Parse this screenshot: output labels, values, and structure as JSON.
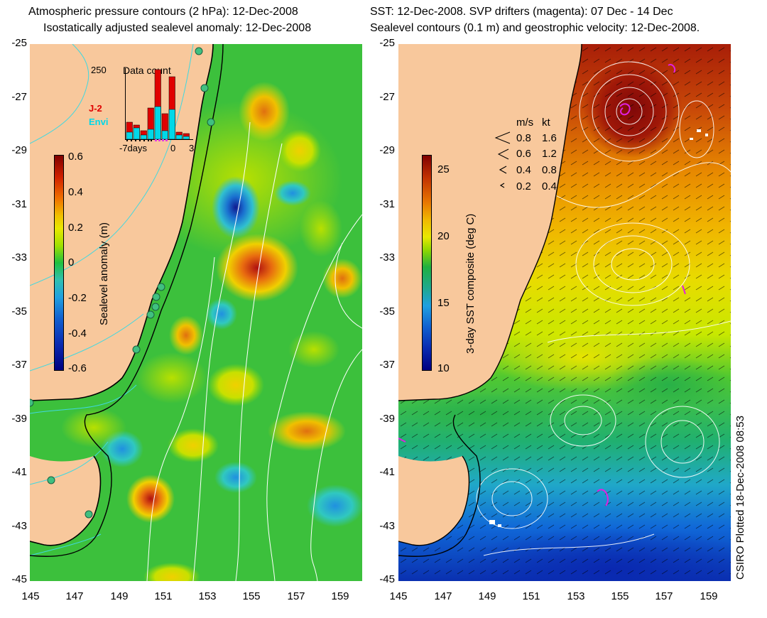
{
  "left_panel": {
    "title_line1": "Atmospheric pressure contours (2 hPa): 12-Dec-2008",
    "title_line2": "Isostatically adjusted sealevel anomaly: 12-Dec-2008",
    "colorbar": {
      "label": "Sealevel anomaly (m)",
      "ticks": [
        "0.6",
        "0.4",
        "0.2",
        "0",
        "-0.2",
        "-0.4",
        "-0.6"
      ],
      "range": [
        -0.6,
        0.6
      ]
    },
    "inset": {
      "title": "Data count",
      "ymax_label": "250",
      "legend": [
        {
          "name": "J-2",
          "color": "#e00000"
        },
        {
          "name": "Envi",
          "color": "#00d8e8"
        }
      ],
      "x_labels": [
        "-7days",
        "0",
        "3"
      ],
      "j2_values": [
        60,
        50,
        30,
        110,
        245,
        90,
        220,
        25,
        20
      ],
      "envi_values": [
        25,
        40,
        15,
        35,
        115,
        30,
        105,
        15,
        10
      ]
    }
  },
  "right_panel": {
    "title_line1": "SST: 12-Dec-2008. SVP drifters (magenta): 07 Dec - 14 Dec",
    "title_line2": "Sealevel contours (0.1 m) and geostrophic velocity: 12-Dec-2008.",
    "colorbar": {
      "label": "3-day SST composite (deg C)",
      "ticks": [
        "25",
        "20",
        "15",
        "10"
      ],
      "range": [
        10,
        26
      ]
    },
    "velocity_legend": {
      "header_ms": "m/s",
      "header_kt": "kt",
      "rows": [
        {
          "ms": "0.8",
          "kt": "1.6"
        },
        {
          "ms": "0.6",
          "kt": "1.2"
        },
        {
          "ms": "0.4",
          "kt": "0.8"
        },
        {
          "ms": "0.2",
          "kt": "0.4"
        }
      ]
    }
  },
  "y_axis_labels": [
    "-25",
    "-27",
    "-29",
    "-31",
    "-33",
    "-35",
    "-37",
    "-39",
    "-41",
    "-43",
    "-45"
  ],
  "x_axis_labels": [
    "145",
    "147",
    "149",
    "151",
    "153",
    "155",
    "157",
    "159"
  ],
  "credit": "CSIRO Plotted 18-Dec-2008 08:53",
  "colors": {
    "land": "#f8c89c",
    "ocean_base": "#3cc03c",
    "coast": "#000000"
  },
  "icons": {
    "tide_gauge": "circle-marker",
    "velocity_arrow": "chevron"
  }
}
